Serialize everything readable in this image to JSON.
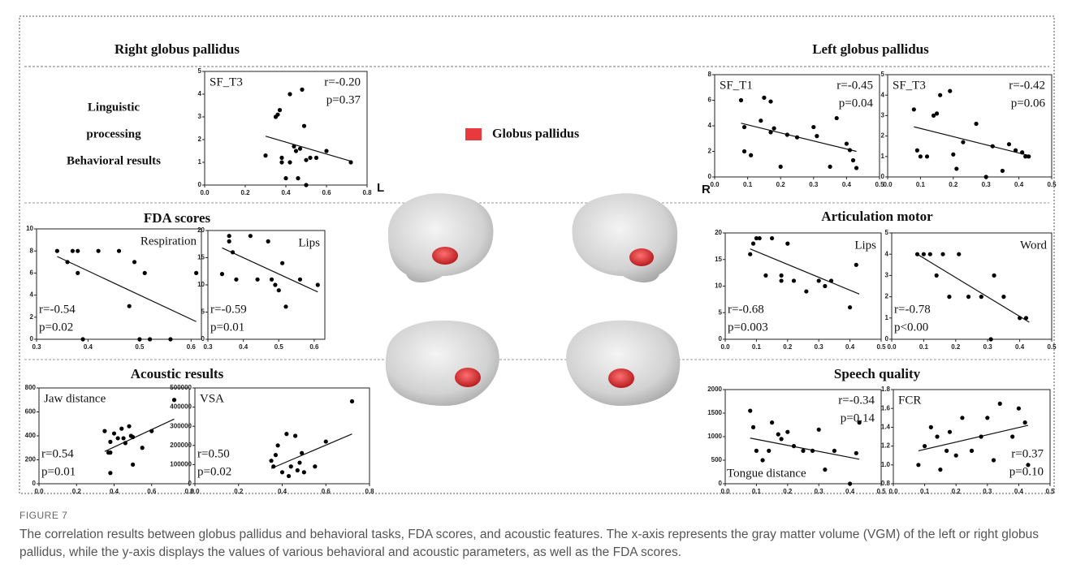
{
  "figure": {
    "label": "FIGURE 7",
    "caption": "The correlation results between globus pallidus and behavioral tasks, FDA scores, and acoustic features. The x-axis represents the gray matter volume (VGM) of the left or right globus pallidus, while the y-axis displays the values of various behavioral and acoustic parameters, as well as the FDA scores."
  },
  "sections": {
    "right": "Right globus pallidus",
    "left": "Left globus pallidus",
    "fda": "FDA scores",
    "articulation": "Articulation motor",
    "acoustic": "Acoustic results",
    "speech": "Speech quality"
  },
  "row_labels": [
    "Linguistic",
    "processing",
    "Behavioral results"
  ],
  "side_labels": [
    "L",
    "R"
  ],
  "legend_label": "Globus pallidus",
  "chart_data": [
    {
      "type": "scatter",
      "label": "SF_T3",
      "annotations": [
        "r=-0.20",
        "p=0.37"
      ],
      "color": "#000000",
      "x": [
        0.3,
        0.35,
        0.36,
        0.37,
        0.38,
        0.38,
        0.4,
        0.42,
        0.42,
        0.44,
        0.45,
        0.46,
        0.47,
        0.48,
        0.49,
        0.5,
        0.5,
        0.52,
        0.55,
        0.6,
        0.72
      ],
      "values": [
        1.3,
        3.0,
        3.1,
        3.3,
        1.2,
        1.0,
        0.3,
        4.0,
        1.0,
        1.7,
        1.5,
        0.3,
        1.6,
        4.2,
        2.6,
        0,
        1.1,
        1.2,
        1.2,
        1.5,
        1.0
      ],
      "trendline": {
        "x": [
          0.3,
          0.72
        ],
        "y": [
          2.15,
          1.05
        ]
      },
      "xlim": [
        0,
        0.8
      ],
      "xticks": [
        {
          "value": 0,
          "label": "0.0"
        },
        0.2,
        0.4,
        0.6,
        0.8
      ],
      "ylim": [
        0,
        5
      ],
      "yticks": [
        0,
        1,
        2,
        3,
        4,
        5
      ]
    },
    {
      "type": "scatter",
      "label": "SF_T1",
      "annotations": [
        "r=-0.45",
        "p=0.04"
      ],
      "color": "#000000",
      "x": [
        0.08,
        0.09,
        0.09,
        0.11,
        0.14,
        0.15,
        0.17,
        0.17,
        0.18,
        0.2,
        0.22,
        0.25,
        0.3,
        0.31,
        0.35,
        0.37,
        0.4,
        0.41,
        0.42,
        0.43
      ],
      "values": [
        6.0,
        2.0,
        3.9,
        1.7,
        4.4,
        6.2,
        3.5,
        5.9,
        3.8,
        0.8,
        3.3,
        3.1,
        3.9,
        3.2,
        0.8,
        4.6,
        2.6,
        2.1,
        1.3,
        0.7
      ],
      "trendline": {
        "x": [
          0.08,
          0.43
        ],
        "y": [
          4.2,
          2.0
        ]
      },
      "xlim": [
        0,
        0.5
      ],
      "xticks": [
        {
          "value": 0,
          "label": "0.0"
        },
        0.1,
        0.2,
        0.3,
        0.4,
        0.5
      ],
      "ylim": [
        0,
        8
      ],
      "yticks": [
        0,
        2,
        4,
        6,
        8
      ]
    },
    {
      "type": "scatter",
      "label": "SF_T3",
      "annotations": [
        "r=-0.42",
        "p=0.06"
      ],
      "color": "#000000",
      "x": [
        0.08,
        0.09,
        0.1,
        0.12,
        0.14,
        0.15,
        0.16,
        0.19,
        0.2,
        0.21,
        0.23,
        0.27,
        0.3,
        0.32,
        0.35,
        0.37,
        0.39,
        0.41,
        0.42,
        0.43
      ],
      "values": [
        3.3,
        1.3,
        1.0,
        1.0,
        3.0,
        3.1,
        4.0,
        4.2,
        1.1,
        0.4,
        1.7,
        2.6,
        0,
        1.5,
        0.3,
        1.6,
        1.3,
        1.2,
        1.0,
        1.0
      ],
      "trendline": {
        "x": [
          0.08,
          0.43
        ],
        "y": [
          2.45,
          1.05
        ]
      },
      "xlim": [
        0,
        0.5
      ],
      "xticks": [
        {
          "value": 0,
          "label": "0.0"
        },
        0.1,
        0.2,
        0.3,
        0.4,
        0.5
      ],
      "ylim": [
        0,
        5
      ],
      "yticks": [
        0,
        1,
        2,
        3,
        4,
        5
      ]
    },
    {
      "type": "scatter",
      "label": "Respiration",
      "annotations": [
        "r=-0.54",
        "p=0.02"
      ],
      "color": "#000000",
      "x": [
        0.34,
        0.36,
        0.37,
        0.38,
        0.38,
        0.42,
        0.46,
        0.48,
        0.49,
        0.51,
        0.39,
        0.5,
        0.52,
        0.56,
        0.61
      ],
      "values": [
        8,
        7,
        8,
        8,
        6,
        8,
        8,
        3,
        7,
        6,
        0,
        0,
        0,
        0,
        6
      ],
      "trendline": {
        "x": [
          0.34,
          0.61
        ],
        "y": [
          7.5,
          1.6
        ]
      },
      "xlim": [
        0.3,
        0.62
      ],
      "xticks": [
        0.3,
        0.4,
        0.5,
        0.6
      ],
      "ylim": [
        0,
        10
      ],
      "yticks": [
        0,
        2,
        4,
        6,
        8,
        10
      ]
    },
    {
      "type": "scatter",
      "label": "Lips",
      "annotations": [
        "r=-0.59",
        "p=0.01"
      ],
      "color": "#000000",
      "x": [
        0.34,
        0.36,
        0.36,
        0.37,
        0.38,
        0.42,
        0.44,
        0.47,
        0.48,
        0.49,
        0.5,
        0.51,
        0.52,
        0.56,
        0.61
      ],
      "values": [
        12,
        19,
        18,
        16,
        11,
        19,
        11,
        18,
        11,
        10,
        9,
        14,
        6,
        11,
        10
      ],
      "trendline": {
        "x": [
          0.34,
          0.61
        ],
        "y": [
          16.8,
          8.7
        ]
      },
      "xlim": [
        0.3,
        0.63
      ],
      "xticks": [
        0.3,
        0.4,
        0.5,
        0.6
      ],
      "ylim": [
        0,
        20
      ],
      "yticks": [
        0,
        5,
        10,
        15,
        20
      ]
    },
    {
      "type": "scatter",
      "label": "Lips",
      "annotations": [
        "r=-0.68",
        "p=0.003"
      ],
      "color": "#000000",
      "x": [
        0.08,
        0.09,
        0.1,
        0.11,
        0.13,
        0.15,
        0.18,
        0.18,
        0.2,
        0.22,
        0.26,
        0.3,
        0.32,
        0.34,
        0.4,
        0.42
      ],
      "values": [
        16,
        18,
        19,
        19,
        12,
        19,
        11,
        12,
        18,
        11,
        9,
        11,
        10,
        11,
        6,
        14
      ],
      "trendline": {
        "x": [
          0.08,
          0.43
        ],
        "y": [
          17,
          8.5
        ]
      },
      "xlim": [
        0,
        0.5
      ],
      "xticks": [
        {
          "value": 0,
          "label": "0.0"
        },
        0.1,
        0.2,
        0.3,
        0.4,
        0.5
      ],
      "ylim": [
        0,
        20
      ],
      "yticks": [
        0,
        5,
        10,
        15,
        20
      ]
    },
    {
      "type": "scatter",
      "label": "Word",
      "annotations": [
        "r=-0.78",
        "p<0.00"
      ],
      "color": "#000000",
      "x": [
        0.08,
        0.1,
        0.12,
        0.14,
        0.16,
        0.18,
        0.21,
        0.24,
        0.28,
        0.31,
        0.32,
        0.35,
        0.4,
        0.42
      ],
      "values": [
        4,
        4,
        4,
        3,
        4,
        2,
        4,
        2,
        2,
        0,
        3,
        2,
        1,
        1
      ],
      "trendline": {
        "x": [
          0.08,
          0.43
        ],
        "y": [
          4.0,
          0.8
        ]
      },
      "xlim": [
        0,
        0.5
      ],
      "xticks": [
        {
          "value": 0,
          "label": "0.0"
        },
        0.1,
        0.2,
        0.3,
        0.4,
        0.5
      ],
      "ylim": [
        0,
        5
      ],
      "yticks": [
        0,
        1,
        2,
        3,
        4,
        5
      ]
    },
    {
      "type": "scatter",
      "label": "Jaw distance",
      "annotations": [
        "r=0.54",
        "p=0.01"
      ],
      "color": "#000000",
      "x": [
        0.35,
        0.37,
        0.38,
        0.38,
        0.38,
        0.4,
        0.42,
        0.44,
        0.45,
        0.46,
        0.48,
        0.49,
        0.5,
        0.5,
        0.55,
        0.6,
        0.72
      ],
      "values": [
        440,
        260,
        350,
        260,
        90,
        420,
        380,
        460,
        380,
        340,
        480,
        400,
        390,
        160,
        300,
        440,
        700
      ],
      "trendline": {
        "x": [
          0.35,
          0.72
        ],
        "y": [
          270,
          540
        ]
      },
      "xlim": [
        0,
        0.8
      ],
      "xticks": [
        {
          "value": 0,
          "label": "0.0"
        },
        0.2,
        0.4,
        0.6,
        0.8
      ],
      "ylim": [
        0,
        800
      ],
      "yticks": [
        0,
        200,
        400,
        600,
        800
      ]
    },
    {
      "type": "scatter",
      "label": "VSA",
      "annotations": [
        "r=0.50",
        "p=0.02"
      ],
      "color": "#000000",
      "x": [
        0.35,
        0.36,
        0.37,
        0.38,
        0.4,
        0.42,
        0.43,
        0.44,
        0.46,
        0.47,
        0.48,
        0.49,
        0.5,
        0.55,
        0.6,
        0.72
      ],
      "values": [
        120000,
        90000,
        150000,
        200000,
        60000,
        260000,
        40000,
        90000,
        250000,
        70000,
        110000,
        160000,
        60000,
        90000,
        220000,
        430000
      ],
      "trendline": {
        "x": [
          0.35,
          0.72
        ],
        "y": [
          80000,
          260000
        ]
      },
      "xlim": [
        0,
        0.8
      ],
      "xticks": [
        {
          "value": 0,
          "label": "0.0"
        },
        0.2,
        0.4,
        0.6,
        0.8
      ],
      "ylim": [
        0,
        500000
      ],
      "yticks": [
        0,
        100000,
        200000,
        300000,
        400000,
        500000
      ]
    },
    {
      "type": "scatter",
      "label": "Tongue distance",
      "annotations": [
        "r=-0.34",
        "p=0.14"
      ],
      "color": "#000000",
      "x": [
        0.08,
        0.09,
        0.1,
        0.12,
        0.14,
        0.15,
        0.17,
        0.18,
        0.2,
        0.22,
        0.25,
        0.28,
        0.3,
        0.32,
        0.35,
        0.4,
        0.42,
        0.43
      ],
      "values": [
        1550,
        1200,
        700,
        500,
        700,
        1300,
        1050,
        950,
        1100,
        800,
        700,
        700,
        1150,
        300,
        700,
        0,
        650,
        1300
      ],
      "trendline": {
        "x": [
          0.08,
          0.43
        ],
        "y": [
          970,
          520
        ]
      },
      "xlim": [
        0,
        0.5
      ],
      "xticks": [
        {
          "value": 0,
          "label": "0.0"
        },
        0.1,
        0.2,
        0.3,
        0.4,
        0.5
      ],
      "ylim": [
        0,
        2000
      ],
      "yticks": [
        0,
        500,
        1000,
        1500,
        2000
      ]
    },
    {
      "type": "scatter",
      "label": "FCR",
      "annotations": [
        "r=0.37",
        "p=0.10"
      ],
      "color": "#000000",
      "x": [
        0.08,
        0.1,
        0.12,
        0.14,
        0.15,
        0.17,
        0.18,
        0.2,
        0.22,
        0.25,
        0.28,
        0.3,
        0.32,
        0.34,
        0.38,
        0.4,
        0.42,
        0.43
      ],
      "values": [
        1.0,
        1.2,
        1.4,
        1.3,
        0.95,
        1.15,
        1.35,
        1.1,
        1.5,
        1.15,
        1.3,
        1.5,
        1.05,
        1.65,
        1.3,
        1.6,
        1.45,
        1.0
      ],
      "trendline": {
        "x": [
          0.08,
          0.43
        ],
        "y": [
          1.15,
          1.42
        ]
      },
      "xlim": [
        0,
        0.5
      ],
      "xticks": [
        {
          "value": 0,
          "label": "0.0"
        },
        0.1,
        0.2,
        0.3,
        0.4,
        0.5
      ],
      "ylim": [
        0.8,
        1.8
      ],
      "yticks": [
        0.8,
        {
          "value": 1,
          "label": "1.0"
        },
        1.2,
        1.4,
        1.6,
        1.8
      ]
    }
  ]
}
